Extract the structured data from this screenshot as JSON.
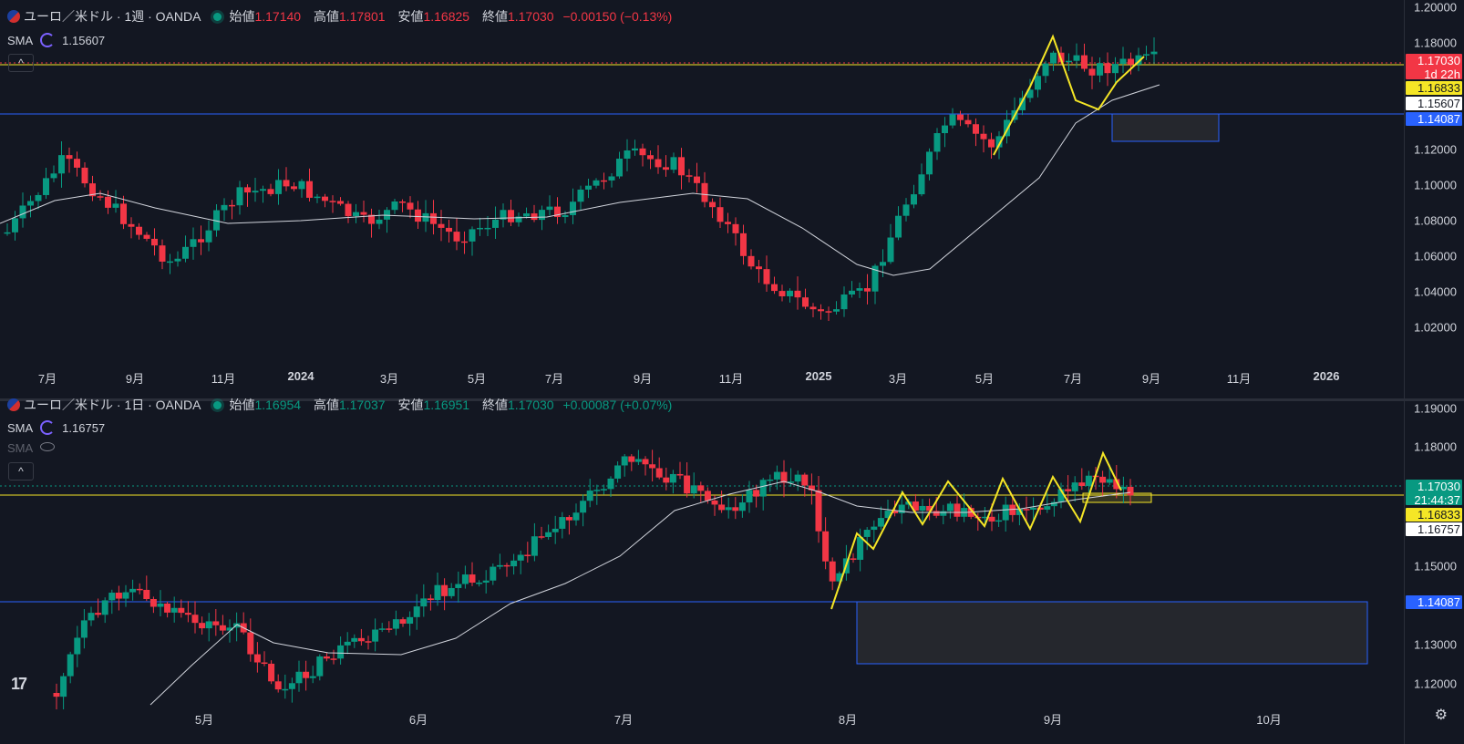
{
  "colors": {
    "bg": "#131722",
    "up": "#089981",
    "down": "#f23645",
    "yellow": "#f5e626",
    "blue": "#2962ff",
    "sma": "#d1d4dc"
  },
  "top": {
    "symbol_title": "ユーロ／米ドル · 1週 · OANDA",
    "ohlc": {
      "open_label": "始値",
      "open": "1.17140",
      "high_label": "高値",
      "high": "1.17801",
      "low_label": "安値",
      "low": "1.16825",
      "close_label": "終値",
      "close": "1.17030",
      "change": "−0.00150 (−0.13%)"
    },
    "sma": {
      "label": "SMA",
      "value": "1.15607"
    },
    "collapse_glyph": "^",
    "price_ticks": [
      "1.20000",
      "1.18000",
      "1.12000",
      "1.10000",
      "1.08000",
      "1.06000",
      "1.04000",
      "1.02000"
    ],
    "tags": {
      "last": "1.17030",
      "countdown": "1d 22h",
      "yellow": "1.16833",
      "sma": "1.15607",
      "blue": "1.14087"
    },
    "x_labels": [
      "7月",
      "9月",
      "11月",
      "2024",
      "3月",
      "5月",
      "7月",
      "9月",
      "11月",
      "2025",
      "3月",
      "5月",
      "7月",
      "9月",
      "11月",
      "2026"
    ]
  },
  "bot": {
    "symbol_title": "ユーロ／米ドル · 1日 · OANDA",
    "ohlc": {
      "open_label": "始値",
      "open": "1.16954",
      "high_label": "高値",
      "high": "1.17037",
      "low_label": "安値",
      "low": "1.16951",
      "close_label": "終値",
      "close": "1.17030",
      "change": "+0.00087 (+0.07%)"
    },
    "sma": {
      "label": "SMA",
      "value": "1.16757"
    },
    "sma2_label": "SMA",
    "collapse_glyph": "^",
    "price_ticks": [
      "1.19000",
      "1.18000",
      "1.15000",
      "1.13000",
      "1.12000"
    ],
    "tags": {
      "last": "1.17030",
      "countdown": "21:44:37",
      "yellow": "1.16833",
      "sma": "1.16757",
      "blue": "1.14087"
    },
    "x_labels": [
      "5月",
      "6月",
      "7月",
      "8月",
      "9月",
      "10月"
    ]
  },
  "logo_text": "17"
}
